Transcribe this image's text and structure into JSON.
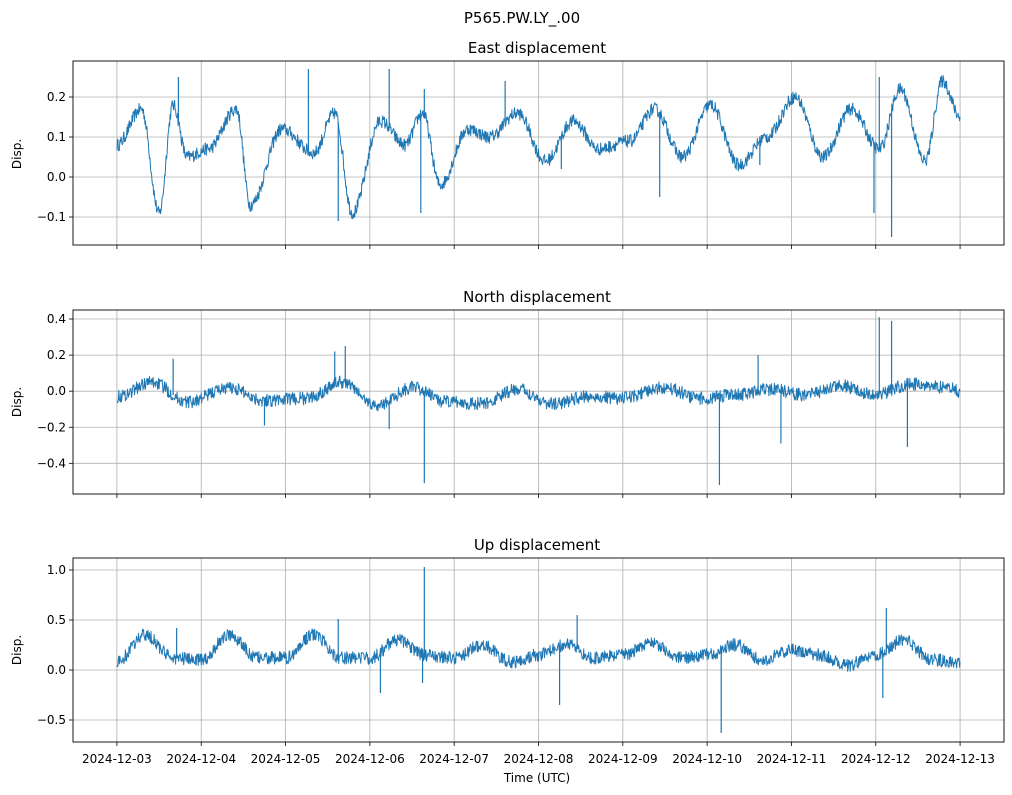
{
  "figure": {
    "suptitle": "P565.PW.LY_.00",
    "xlabel": "Time (UTC)",
    "x_ticks": [
      "2024-12-03",
      "2024-12-04",
      "2024-12-05",
      "2024-12-06",
      "2024-12-07",
      "2024-12-08",
      "2024-12-09",
      "2024-12-10",
      "2024-12-11",
      "2024-12-12",
      "2024-12-13"
    ],
    "line_color": "#1f77b4",
    "grid_color": "#b0b0b0"
  },
  "chart_data": [
    {
      "type": "line",
      "title": "East displacement",
      "ylabel": "Disp.",
      "xlim": [
        "2024-12-02T11:30",
        "2024-12-13T12:30"
      ],
      "ylim": [
        -0.17,
        0.29
      ],
      "yticks": [
        -0.1,
        0.0,
        0.1,
        0.2
      ],
      "ytick_labels": [
        "−0.1",
        "0.0",
        "0.1",
        "0.2"
      ],
      "grid": true,
      "series": [
        {
          "x": [
            "2024-12-03T00:00",
            "2024-12-03T07:00",
            "2024-12-03T12:00",
            "2024-12-03T16:00",
            "2024-12-03T20:00",
            "2024-12-04T02:00",
            "2024-12-04T10:00",
            "2024-12-04T14:00",
            "2024-12-04T23:00",
            "2024-12-05T08:00",
            "2024-12-05T14:00",
            "2024-12-05T19:00",
            "2024-12-06T03:00",
            "2024-12-06T10:00",
            "2024-12-06T15:00",
            "2024-12-06T20:00",
            "2024-12-07T04:00",
            "2024-12-07T10:00",
            "2024-12-07T18:00",
            "2024-12-08T02:00",
            "2024-12-08T10:00",
            "2024-12-08T17:00",
            "2024-12-09T02:00",
            "2024-12-09T09:00",
            "2024-12-09T17:00",
            "2024-12-10T01:00",
            "2024-12-10T09:00",
            "2024-12-10T17:00",
            "2024-12-11T01:00",
            "2024-12-11T09:00",
            "2024-12-11T17:00",
            "2024-12-12T01:00",
            "2024-12-12T07:00",
            "2024-12-12T14:00",
            "2024-12-12T19:00",
            "2024-12-13T00:00"
          ],
          "values": [
            0.08,
            0.17,
            -0.09,
            0.18,
            0.05,
            0.07,
            0.17,
            -0.07,
            0.12,
            0.06,
            0.16,
            -0.09,
            0.14,
            0.08,
            0.16,
            -0.02,
            0.12,
            0.1,
            0.16,
            0.04,
            0.14,
            0.07,
            0.09,
            0.17,
            0.05,
            0.18,
            0.03,
            0.1,
            0.2,
            0.05,
            0.17,
            0.07,
            0.22,
            0.04,
            0.24,
            0.15
          ]
        }
      ],
      "spikes": [
        {
          "x": "2024-12-03T17:30",
          "y": 0.25
        },
        {
          "x": "2024-12-05T06:30",
          "y": 0.27
        },
        {
          "x": "2024-12-05T15:00",
          "y": -0.11
        },
        {
          "x": "2024-12-06T05:30",
          "y": 0.27
        },
        {
          "x": "2024-12-06T15:30",
          "y": 0.22
        },
        {
          "x": "2024-12-06T14:30",
          "y": -0.09
        },
        {
          "x": "2024-12-07T14:30",
          "y": 0.24
        },
        {
          "x": "2024-12-08T06:30",
          "y": 0.02
        },
        {
          "x": "2024-12-09T10:30",
          "y": -0.05
        },
        {
          "x": "2024-12-10T15:00",
          "y": 0.03
        },
        {
          "x": "2024-12-11T23:30",
          "y": -0.09
        },
        {
          "x": "2024-12-12T04:30",
          "y": -0.15
        },
        {
          "x": "2024-12-12T01:00",
          "y": 0.25
        }
      ]
    },
    {
      "type": "line",
      "title": "North displacement",
      "ylabel": "Disp.",
      "xlim": [
        "2024-12-02T11:30",
        "2024-12-13T12:30"
      ],
      "ylim": [
        -0.57,
        0.45
      ],
      "yticks": [
        -0.4,
        -0.2,
        0.0,
        0.2,
        0.4
      ],
      "ytick_labels": [
        "−0.4",
        "−0.2",
        "0.0",
        "0.2",
        "0.4"
      ],
      "grid": true,
      "series": [
        {
          "x": [
            "2024-12-03T00:00",
            "2024-12-03T10:00",
            "2024-12-03T20:00",
            "2024-12-04T08:00",
            "2024-12-04T18:00",
            "2024-12-05T06:00",
            "2024-12-05T16:00",
            "2024-12-06T02:00",
            "2024-12-06T12:00",
            "2024-12-06T22:00",
            "2024-12-07T08:00",
            "2024-12-07T18:00",
            "2024-12-08T04:00",
            "2024-12-08T14:00",
            "2024-12-09T00:00",
            "2024-12-09T12:00",
            "2024-12-09T22:00",
            "2024-12-10T08:00",
            "2024-12-10T18:00",
            "2024-12-11T04:00",
            "2024-12-11T14:00",
            "2024-12-12T00:00",
            "2024-12-12T10:00",
            "2024-12-12T20:00",
            "2024-12-13T00:00"
          ],
          "values": [
            -0.03,
            0.05,
            -0.06,
            0.02,
            -0.05,
            -0.04,
            0.05,
            -0.08,
            0.02,
            -0.06,
            -0.07,
            0.01,
            -0.07,
            -0.03,
            -0.04,
            0.02,
            -0.04,
            -0.02,
            0.01,
            -0.02,
            0.03,
            -0.02,
            0.04,
            0.02,
            0.0
          ]
        }
      ],
      "spikes": [
        {
          "x": "2024-12-03T16:00",
          "y": 0.18
        },
        {
          "x": "2024-12-04T18:00",
          "y": -0.19
        },
        {
          "x": "2024-12-05T14:00",
          "y": 0.22
        },
        {
          "x": "2024-12-05T17:00",
          "y": 0.25
        },
        {
          "x": "2024-12-06T05:30",
          "y": -0.21
        },
        {
          "x": "2024-12-06T15:30",
          "y": -0.51
        },
        {
          "x": "2024-12-10T03:30",
          "y": -0.52
        },
        {
          "x": "2024-12-10T14:30",
          "y": 0.2
        },
        {
          "x": "2024-12-10T21:00",
          "y": -0.29
        },
        {
          "x": "2024-12-12T01:00",
          "y": 0.41
        },
        {
          "x": "2024-12-12T04:30",
          "y": 0.39
        },
        {
          "x": "2024-12-12T09:00",
          "y": -0.31
        }
      ]
    },
    {
      "type": "line",
      "title": "Up displacement",
      "ylabel": "Disp.",
      "xlim": [
        "2024-12-02T11:30",
        "2024-12-13T12:30"
      ],
      "ylim": [
        -0.72,
        1.12
      ],
      "yticks": [
        -0.5,
        0.0,
        0.5,
        1.0
      ],
      "ytick_labels": [
        "−0.5",
        "0.0",
        "0.5",
        "1.0"
      ],
      "grid": true,
      "series": [
        {
          "x": [
            "2024-12-03T00:00",
            "2024-12-03T08:00",
            "2024-12-03T16:00",
            "2024-12-04T00:00",
            "2024-12-04T08:00",
            "2024-12-04T16:00",
            "2024-12-05T00:00",
            "2024-12-05T08:00",
            "2024-12-05T16:00",
            "2024-12-06T00:00",
            "2024-12-06T08:00",
            "2024-12-06T16:00",
            "2024-12-07T00:00",
            "2024-12-07T08:00",
            "2024-12-07T16:00",
            "2024-12-08T00:00",
            "2024-12-08T08:00",
            "2024-12-08T16:00",
            "2024-12-09T00:00",
            "2024-12-09T08:00",
            "2024-12-09T16:00",
            "2024-12-10T00:00",
            "2024-12-10T08:00",
            "2024-12-10T16:00",
            "2024-12-11T00:00",
            "2024-12-11T08:00",
            "2024-12-11T16:00",
            "2024-12-12T00:00",
            "2024-12-12T08:00",
            "2024-12-12T16:00",
            "2024-12-13T00:00"
          ],
          "values": [
            0.08,
            0.35,
            0.12,
            0.1,
            0.35,
            0.12,
            0.12,
            0.35,
            0.12,
            0.12,
            0.3,
            0.15,
            0.12,
            0.25,
            0.08,
            0.15,
            0.25,
            0.12,
            0.15,
            0.28,
            0.12,
            0.15,
            0.25,
            0.1,
            0.2,
            0.15,
            0.05,
            0.15,
            0.3,
            0.1,
            0.08
          ]
        }
      ],
      "spikes": [
        {
          "x": "2024-12-03T17:00",
          "y": 0.42
        },
        {
          "x": "2024-12-05T06:00",
          "y": 0.38
        },
        {
          "x": "2024-12-05T15:00",
          "y": 0.51
        },
        {
          "x": "2024-12-06T03:00",
          "y": -0.23
        },
        {
          "x": "2024-12-06T15:30",
          "y": 1.03
        },
        {
          "x": "2024-12-06T15:00",
          "y": -0.13
        },
        {
          "x": "2024-12-08T06:00",
          "y": -0.35
        },
        {
          "x": "2024-12-08T11:00",
          "y": 0.55
        },
        {
          "x": "2024-12-10T04:00",
          "y": -0.63
        },
        {
          "x": "2024-12-12T03:00",
          "y": 0.62
        },
        {
          "x": "2024-12-12T02:00",
          "y": -0.28
        }
      ]
    }
  ]
}
